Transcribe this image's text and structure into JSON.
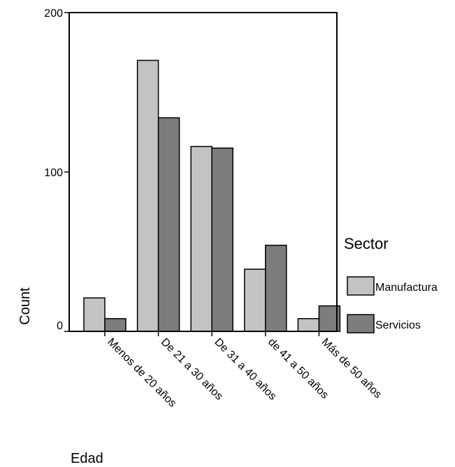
{
  "chart_data": {
    "type": "bar",
    "categories": [
      "Menos de 20 años",
      "De 21 a 30 años",
      "De 31 a 40 años",
      "de 41 a 50 años",
      "Más de 50 años"
    ],
    "series": [
      {
        "name": "Manufactura",
        "values": [
          21,
          170,
          116,
          39,
          8
        ],
        "color": "#c3c3c3"
      },
      {
        "name": "Servicios",
        "values": [
          8,
          134,
          115,
          54,
          16
        ],
        "color": "#7d7d7d"
      }
    ],
    "xlabel": "Edad",
    "ylabel": "Count",
    "ylim": [
      0,
      200
    ],
    "yticks": [
      0,
      100,
      200
    ],
    "legend": {
      "title": "Sector",
      "position": "right"
    },
    "grid": false
  }
}
